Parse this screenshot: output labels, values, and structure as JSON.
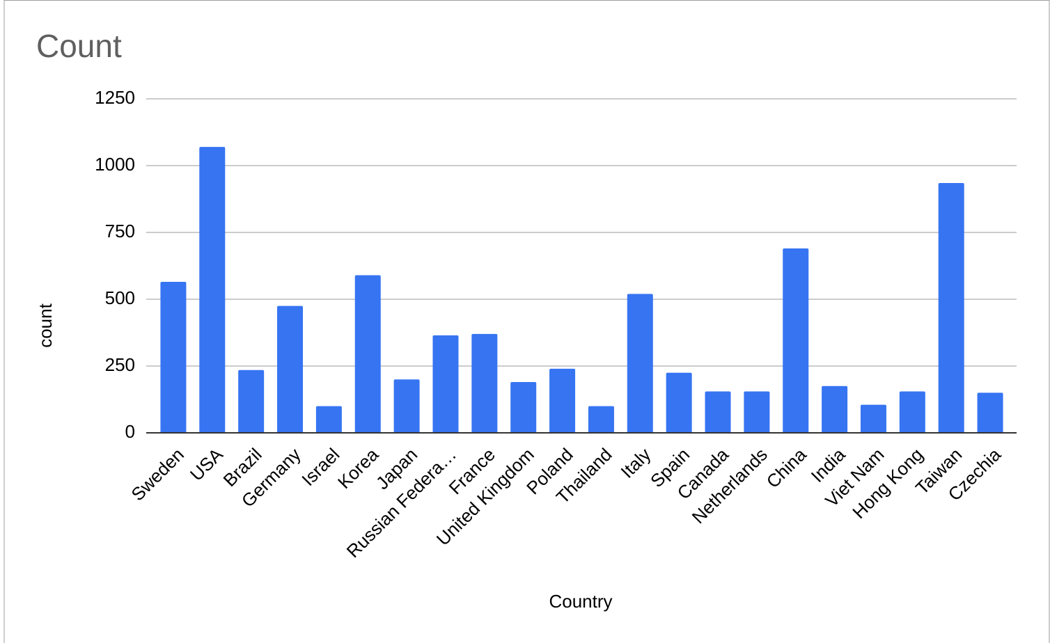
{
  "chart_data": {
    "type": "bar",
    "title": "Count",
    "x_label": "Country",
    "y_label": "count",
    "categories": [
      "Sweden",
      "USA",
      "Brazil",
      "Germany",
      "Israel",
      "Korea",
      "Japan",
      "Russian Federa…",
      "France",
      "United Kingdom",
      "Poland",
      "Thailand",
      "Italy",
      "Spain",
      "Canada",
      "Netherlands",
      "China",
      "India",
      "Viet Nam",
      "Hong Kong",
      "Taiwan",
      "Czechia"
    ],
    "values": [
      565,
      1070,
      235,
      475,
      100,
      590,
      200,
      365,
      370,
      190,
      240,
      100,
      520,
      225,
      155,
      155,
      690,
      175,
      105,
      155,
      935,
      150
    ],
    "color": "#3674f2",
    "ylim": [
      0,
      1250
    ],
    "yticks": [
      0,
      250,
      500,
      750,
      1000,
      1250
    ],
    "grid": true
  }
}
